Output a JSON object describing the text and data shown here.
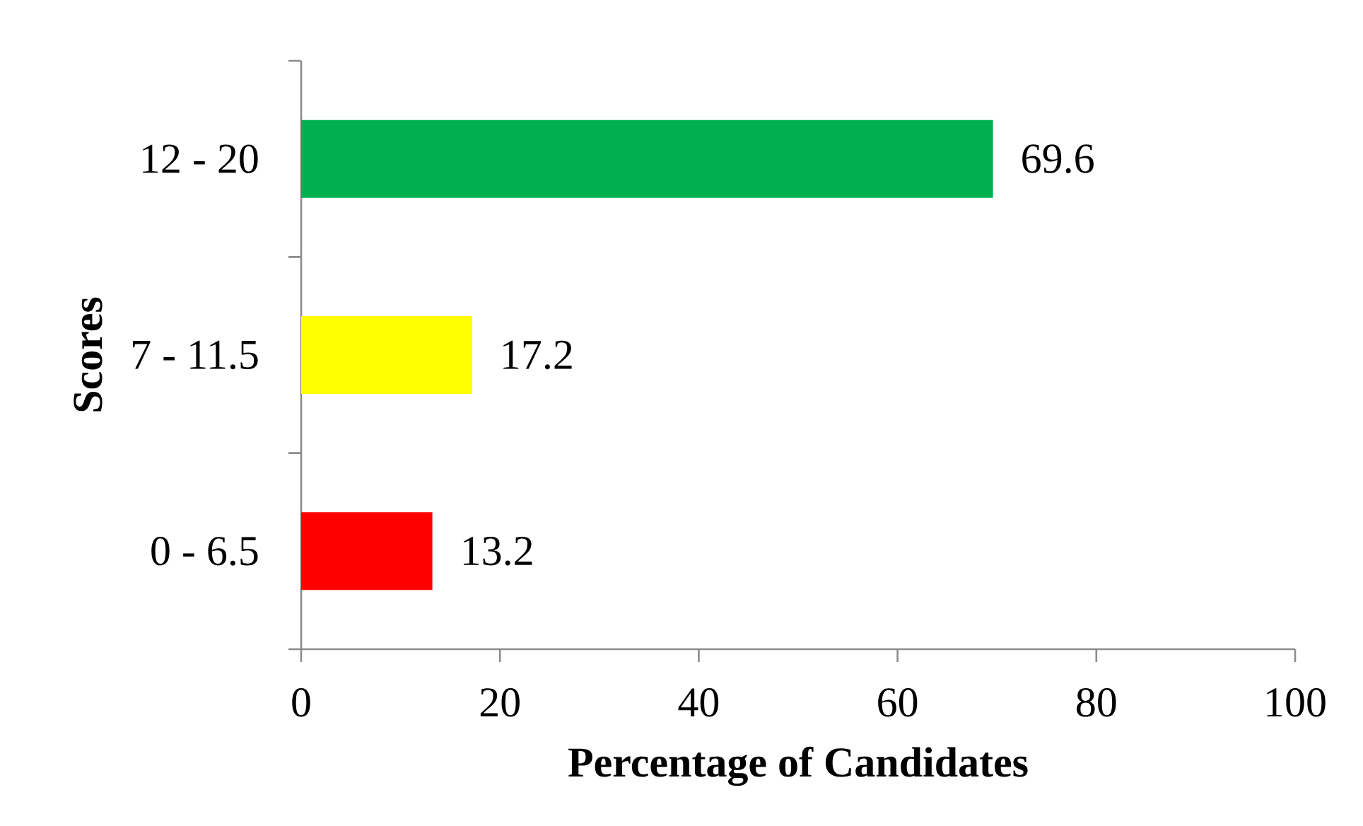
{
  "chart_data": {
    "type": "bar",
    "orientation": "horizontal",
    "xlabel": "Percentage of Candidates",
    "ylabel": "Scores",
    "categories": [
      "12 - 20",
      "7 - 11.5",
      "0 - 6.5"
    ],
    "values": [
      69.6,
      17.2,
      13.2
    ],
    "colors": [
      "#00b050",
      "#ffff00",
      "#ff0000"
    ],
    "xlim": [
      0,
      100
    ],
    "xticks": [
      0,
      20,
      40,
      60,
      80,
      100
    ],
    "data_labels": true
  }
}
